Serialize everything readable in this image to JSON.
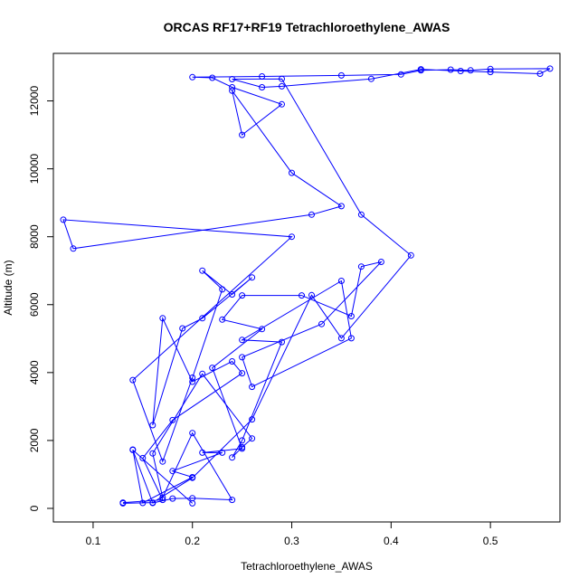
{
  "chart_data": {
    "type": "line",
    "title": "ORCAS RF17+RF19 Tetrachloroethylene_AWAS",
    "xlabel": "Tetrachloroethylene_AWAS",
    "ylabel": "Altitude (m)",
    "xlim": [
      0.06,
      0.57
    ],
    "ylim": [
      -400,
      13400
    ],
    "xticks": [
      0.1,
      0.2,
      0.3,
      0.4,
      0.5
    ],
    "xtick_labels": [
      "0.1",
      "0.2",
      "0.3",
      "0.4",
      "0.5"
    ],
    "yticks": [
      0,
      2000,
      4000,
      6000,
      8000,
      10000,
      12000
    ],
    "ytick_labels": [
      "0",
      "2000",
      "4000",
      "6000",
      "8000",
      "10000",
      "12000"
    ],
    "grid": false,
    "markers": "open-circle",
    "series_color": "#0000ff",
    "series": [
      {
        "x": [
          0.13,
          0.17,
          0.15,
          0.18,
          0.25,
          0.24,
          0.2,
          0.17,
          0.16,
          0.19,
          0.21,
          0.26,
          0.24,
          0.21,
          0.23,
          0.2,
          0.17,
          0.14,
          0.3,
          0.07,
          0.08,
          0.32,
          0.35,
          0.3,
          0.24,
          0.25,
          0.29,
          0.24,
          0.22,
          0.2,
          0.27,
          0.35,
          0.41,
          0.43,
          0.46,
          0.48,
          0.5,
          0.56,
          0.55,
          0.5,
          0.47,
          0.43,
          0.38,
          0.29,
          0.27,
          0.24,
          0.29,
          0.37,
          0.42,
          0.35,
          0.32,
          0.26,
          0.2,
          0.16,
          0.13
        ],
        "y": [
          170,
          250,
          1480,
          2600,
          3980,
          4330,
          3730,
          5600,
          2450,
          5300,
          5600,
          6800,
          6300,
          7000,
          6450,
          3850,
          1380,
          3780,
          8000,
          8500,
          7650,
          8650,
          8900,
          9880,
          12300,
          11000,
          11900,
          12400,
          12680,
          12700,
          12720,
          12750,
          12780,
          12900,
          12920,
          12900,
          12940,
          12950,
          12800,
          12850,
          12880,
          12930,
          12650,
          12430,
          12400,
          12640,
          12650,
          8650,
          7450,
          5010,
          6280,
          2620,
          900,
          170,
          150
        ]
      },
      {
        "x": [
          0.14,
          0.15,
          0.2,
          0.18,
          0.23,
          0.21,
          0.25,
          0.22,
          0.27,
          0.23,
          0.25,
          0.31,
          0.36,
          0.37,
          0.39,
          0.33,
          0.25,
          0.26,
          0.36,
          0.35,
          0.25,
          0.29,
          0.25,
          0.24,
          0.25,
          0.26,
          0.21,
          0.16,
          0.17,
          0.2,
          0.24,
          0.2,
          0.18,
          0.16,
          0.14,
          0.2
        ],
        "y": [
          1730,
          160,
          920,
          1100,
          1640,
          1640,
          1760,
          4140,
          5280,
          5560,
          6270,
          6270,
          5660,
          7120,
          7260,
          5430,
          4450,
          3580,
          5010,
          6700,
          4960,
          4900,
          2000,
          1500,
          1800,
          2060,
          3960,
          1620,
          320,
          2220,
          250,
          300,
          290,
          160,
          1720,
          150
        ]
      }
    ]
  }
}
